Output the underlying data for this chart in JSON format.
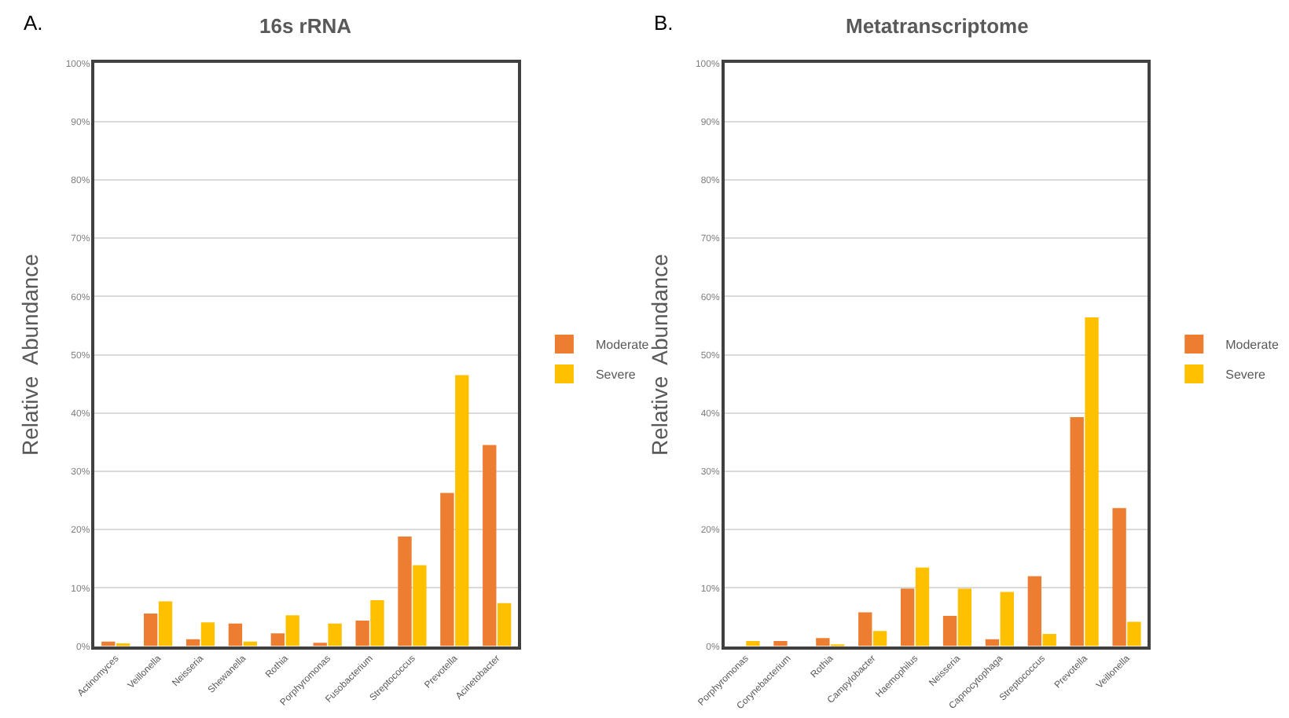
{
  "chart_data": [
    {
      "type": "bar",
      "title": "16s rRNA",
      "ylabel": "Relative  Abundance",
      "annotations": [
        "A."
      ],
      "categories": [
        "Actinomyces",
        "Veillonella",
        "Neisseria",
        "Shewanella",
        "Rothia",
        "Porphyromonas",
        "Fusobacterium",
        "Streptococcus",
        "Prevotella",
        "Acinetobacter"
      ],
      "series": [
        {
          "name": "Moderate",
          "color": "#ed7d31",
          "values": [
            0.8,
            5.6,
            1.2,
            3.9,
            2.2,
            0.6,
            4.4,
            18.8,
            26.3,
            34.5
          ]
        },
        {
          "name": "Severe",
          "color": "#ffc000",
          "values": [
            0.5,
            7.7,
            4.1,
            0.8,
            5.3,
            3.9,
            7.9,
            13.9,
            46.5,
            7.4
          ]
        }
      ],
      "ylim": [
        0,
        100
      ],
      "yticks": [
        {
          "value": 0,
          "label": "0%"
        },
        {
          "value": 10,
          "label": "10%"
        },
        {
          "value": 20,
          "label": "20%"
        },
        {
          "value": 30,
          "label": "30%"
        },
        {
          "value": 40,
          "label": "40%"
        },
        {
          "value": 50,
          "label": "50%"
        },
        {
          "value": 60,
          "label": "60%"
        },
        {
          "value": 70,
          "label": "70%"
        },
        {
          "value": 80,
          "label": "80%"
        },
        {
          "value": 90,
          "label": "90%"
        },
        {
          "value": 100,
          "label": "100%"
        }
      ],
      "grid": "y",
      "legend": "right"
    },
    {
      "type": "bar",
      "title": "Metatranscriptome",
      "ylabel": "Relative  Abundance",
      "annotations": [
        "B."
      ],
      "categories": [
        "Porphyromonas",
        "Corynebacterium",
        "Rothia",
        "Campylobacter",
        "Haemophilus",
        "Neisseria",
        "Capnocytophaga",
        "Streptococcus",
        "Prevotella",
        "Veillonella"
      ],
      "series": [
        {
          "name": "Moderate",
          "color": "#ed7d31",
          "values": [
            null,
            0.9,
            1.4,
            5.8,
            9.9,
            5.2,
            1.2,
            12.0,
            39.3,
            23.7
          ]
        },
        {
          "name": "Severe",
          "color": "#ffc000",
          "values": [
            0.9,
            null,
            0.3,
            2.6,
            13.5,
            9.9,
            9.3,
            2.1,
            56.4,
            4.2
          ]
        }
      ],
      "ylim": [
        0,
        100
      ],
      "yticks": [
        {
          "value": 0,
          "label": "0%"
        },
        {
          "value": 10,
          "label": "10%"
        },
        {
          "value": 20,
          "label": "20%"
        },
        {
          "value": 30,
          "label": "30%"
        },
        {
          "value": 40,
          "label": "40%"
        },
        {
          "value": 50,
          "label": "50%"
        },
        {
          "value": 60,
          "label": "60%"
        },
        {
          "value": 70,
          "label": "70%"
        },
        {
          "value": 80,
          "label": "80%"
        },
        {
          "value": 90,
          "label": "90%"
        },
        {
          "value": 100,
          "label": "100%"
        }
      ],
      "grid": "y",
      "legend": "right"
    }
  ]
}
